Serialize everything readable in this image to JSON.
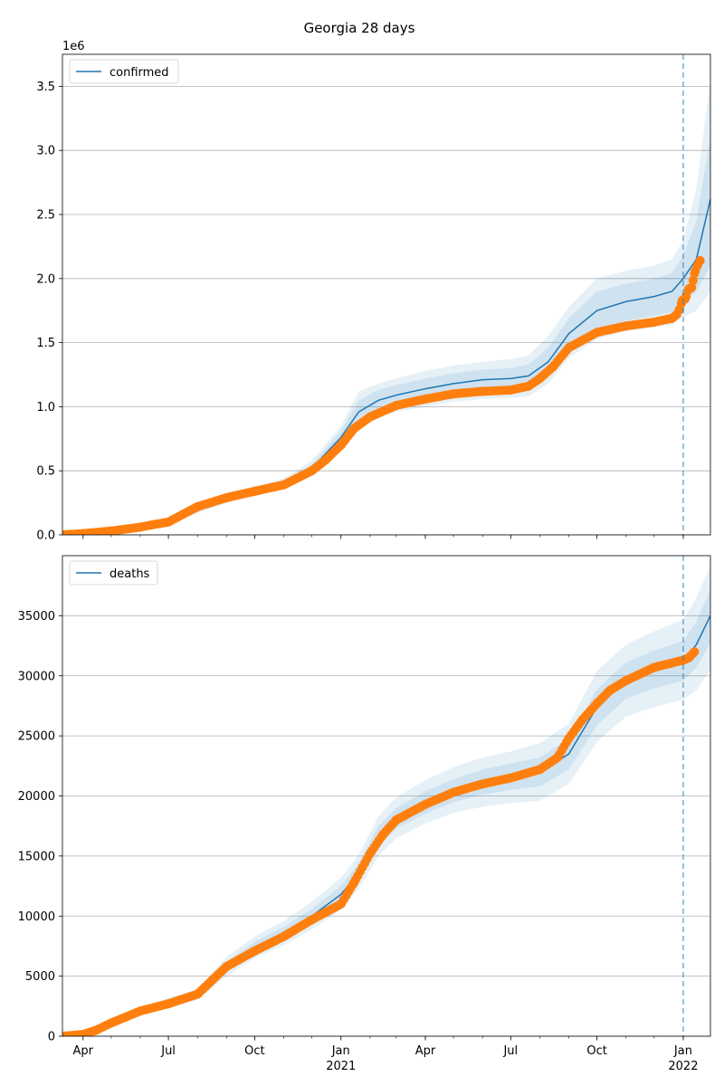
{
  "title": "Georgia 28 days",
  "colors": {
    "model_line": "#1f77b4",
    "band": "#1f77b4",
    "observed": "#ff7f0e",
    "grid": "#b0b0b0",
    "vline": "#1f77b4"
  },
  "chart_data": [
    {
      "type": "line",
      "panel": "top",
      "legend": [
        "confirmed"
      ],
      "legend_location": "upper left",
      "offset_label": "1e6",
      "grid": "y",
      "ylim": [
        0,
        3.75
      ],
      "yticks": [
        0.0,
        0.5,
        1.0,
        1.5,
        2.0,
        2.5,
        3.0,
        3.5
      ],
      "ytick_labels": [
        "0.0",
        "0.5",
        "1.0",
        "1.5",
        "2.0",
        "2.5",
        "3.0",
        "3.5"
      ],
      "xlim": [
        "2020-03-10",
        "2022-01-30"
      ],
      "forecast_start": "2022-01-01",
      "model": {
        "name": "confirmed",
        "x": [
          "2020-03-10",
          "2020-05-01",
          "2020-06-01",
          "2020-07-01",
          "2020-08-01",
          "2020-09-01",
          "2020-10-01",
          "2020-11-01",
          "2020-12-01",
          "2021-01-01",
          "2021-01-20",
          "2021-02-10",
          "2021-03-01",
          "2021-04-01",
          "2021-05-01",
          "2021-06-01",
          "2021-07-01",
          "2021-07-20",
          "2021-08-10",
          "2021-09-01",
          "2021-10-01",
          "2021-11-01",
          "2021-12-01",
          "2021-12-20",
          "2022-01-01",
          "2022-01-15",
          "2022-01-30"
        ],
        "median": [
          0.0,
          0.03,
          0.06,
          0.1,
          0.2,
          0.28,
          0.35,
          0.4,
          0.52,
          0.76,
          0.96,
          1.05,
          1.09,
          1.14,
          1.18,
          1.21,
          1.22,
          1.24,
          1.35,
          1.57,
          1.75,
          1.82,
          1.86,
          1.9,
          2.0,
          2.15,
          2.62
        ],
        "bands": [
          {
            "lower": [
              0.0,
              0.02,
              0.05,
              0.09,
              0.17,
              0.25,
              0.32,
              0.37,
              0.47,
              0.67,
              0.82,
              0.92,
              0.96,
              1.0,
              1.04,
              1.06,
              1.07,
              1.08,
              1.18,
              1.38,
              1.53,
              1.59,
              1.62,
              1.64,
              1.7,
              1.75,
              1.9
            ],
            "upper": [
              0.0,
              0.04,
              0.08,
              0.11,
              0.24,
              0.33,
              0.38,
              0.44,
              0.58,
              0.85,
              1.12,
              1.18,
              1.22,
              1.28,
              1.32,
              1.35,
              1.37,
              1.4,
              1.55,
              1.78,
              2.0,
              2.06,
              2.1,
              2.15,
              2.3,
              2.7,
              3.55
            ]
          },
          {
            "lower": [
              0.0,
              0.025,
              0.055,
              0.095,
              0.18,
              0.26,
              0.33,
              0.38,
              0.49,
              0.7,
              0.87,
              0.97,
              1.01,
              1.06,
              1.1,
              1.12,
              1.13,
              1.15,
              1.25,
              1.45,
              1.61,
              1.67,
              1.71,
              1.74,
              1.8,
              1.9,
              2.1
            ],
            "upper": [
              0.0,
              0.035,
              0.07,
              0.105,
              0.22,
              0.31,
              0.37,
              0.42,
              0.55,
              0.81,
              1.05,
              1.13,
              1.17,
              1.22,
              1.26,
              1.29,
              1.3,
              1.33,
              1.46,
              1.69,
              1.9,
              1.96,
              2.0,
              2.04,
              2.18,
              2.45,
              3.1
            ]
          }
        ]
      },
      "observed": {
        "x": [
          "2020-03-10",
          "2020-04-01",
          "2020-05-01",
          "2020-06-01",
          "2020-06-15",
          "2020-07-01",
          "2020-08-01",
          "2020-09-01",
          "2020-10-01",
          "2020-11-01",
          "2020-12-01",
          "2020-12-15",
          "2021-01-01",
          "2021-01-15",
          "2021-02-01",
          "2021-03-01",
          "2021-04-01",
          "2021-05-01",
          "2021-06-01",
          "2021-07-01",
          "2021-07-20",
          "2021-08-01",
          "2021-08-15",
          "2021-09-01",
          "2021-10-01",
          "2021-11-01",
          "2021-12-01",
          "2021-12-20",
          "2021-12-25",
          "2021-12-28",
          "2021-12-31",
          "2022-01-03",
          "2022-01-07",
          "2022-01-10",
          "2022-01-13",
          "2022-01-16",
          "2022-01-19"
        ],
        "values": [
          0.0,
          0.01,
          0.03,
          0.06,
          0.08,
          0.1,
          0.22,
          0.29,
          0.34,
          0.39,
          0.5,
          0.58,
          0.7,
          0.83,
          0.92,
          1.01,
          1.06,
          1.1,
          1.12,
          1.13,
          1.16,
          1.22,
          1.31,
          1.46,
          1.58,
          1.63,
          1.66,
          1.69,
          1.72,
          1.76,
          1.83,
          1.84,
          1.92,
          1.93,
          2.04,
          2.1,
          2.14
        ]
      }
    },
    {
      "type": "line",
      "panel": "bottom",
      "legend": [
        "deaths"
      ],
      "legend_location": "upper left",
      "grid": "y",
      "ylim": [
        0,
        40000
      ],
      "yticks": [
        0,
        5000,
        10000,
        15000,
        20000,
        25000,
        30000,
        35000
      ],
      "ytick_labels": [
        "0",
        "5000",
        "10000",
        "15000",
        "20000",
        "25000",
        "30000",
        "35000"
      ],
      "xlim": [
        "2020-03-10",
        "2022-01-30"
      ],
      "xticks": [
        "2020-04-01",
        "2020-07-01",
        "2020-10-01",
        "2021-01-01",
        "2021-04-01",
        "2021-07-01",
        "2021-10-01",
        "2022-01-01"
      ],
      "xtick_labels": [
        "Apr",
        "Jul",
        "Oct",
        "Jan",
        "Apr",
        "Jul",
        "Oct",
        "Jan"
      ],
      "xtick_year_labels": [
        "",
        "",
        "",
        "2021",
        "",
        "",
        "",
        "2022"
      ],
      "forecast_start": "2022-01-01",
      "model": {
        "name": "deaths",
        "x": [
          "2020-03-10",
          "2020-04-01",
          "2020-05-01",
          "2020-06-01",
          "2020-07-01",
          "2020-08-01",
          "2020-09-01",
          "2020-10-01",
          "2020-11-01",
          "2020-12-01",
          "2021-01-01",
          "2021-01-20",
          "2021-02-10",
          "2021-03-01",
          "2021-04-01",
          "2021-05-01",
          "2021-06-01",
          "2021-07-01",
          "2021-08-01",
          "2021-09-01",
          "2021-10-01",
          "2021-11-01",
          "2021-12-01",
          "2022-01-01",
          "2022-01-15",
          "2022-01-30"
        ],
        "median": [
          0,
          200,
          1200,
          2100,
          2800,
          3400,
          5800,
          7400,
          8600,
          10000,
          11800,
          13600,
          16600,
          18100,
          19400,
          20400,
          21200,
          21600,
          22000,
          23500,
          27400,
          29600,
          30500,
          31200,
          32600,
          35000
        ],
        "bands": [
          {
            "lower": [
              0,
              150,
              1000,
              1800,
              2500,
              3000,
              5000,
              6500,
              7600,
              8900,
              10500,
              12300,
              15000,
              16500,
              17700,
              18600,
              19100,
              19400,
              19600,
              21000,
              24500,
              26600,
              27400,
              28000,
              28800,
              30500
            ],
            "upper": [
              0,
              250,
              1400,
              2400,
              3200,
              3900,
              6600,
              8300,
              9600,
              11200,
              13200,
              15100,
              18300,
              19900,
              21300,
              22400,
              23200,
              23700,
              24400,
              26000,
              30400,
              32600,
              33700,
              34700,
              36500,
              39200
            ]
          },
          {
            "lower": [
              0,
              170,
              1100,
              1950,
              2650,
              3200,
              5400,
              6950,
              8100,
              9450,
              11100,
              12900,
              15800,
              17300,
              18500,
              19500,
              20100,
              20500,
              20800,
              22200,
              25900,
              28100,
              28950,
              29600,
              30700,
              32700
            ],
            "upper": [
              0,
              230,
              1300,
              2250,
              2950,
              3650,
              6200,
              7850,
              9100,
              10600,
              12500,
              14400,
              17500,
              19000,
              20400,
              21400,
              22200,
              22700,
              23200,
              24800,
              28900,
              31100,
              32100,
              32900,
              34500,
              37200
            ]
          }
        ]
      },
      "observed": {
        "x": [
          "2020-03-10",
          "2020-04-01",
          "2020-04-15",
          "2020-05-01",
          "2020-06-01",
          "2020-07-01",
          "2020-08-01",
          "2020-09-01",
          "2020-10-01",
          "2020-11-01",
          "2020-12-01",
          "2021-01-01",
          "2021-01-15",
          "2021-02-01",
          "2021-02-15",
          "2021-03-01",
          "2021-04-01",
          "2021-05-01",
          "2021-06-01",
          "2021-07-01",
          "2021-08-01",
          "2021-08-20",
          "2021-09-01",
          "2021-09-15",
          "2021-10-01",
          "2021-10-15",
          "2021-11-01",
          "2021-12-01",
          "2022-01-01",
          "2022-01-07",
          "2022-01-13"
        ],
        "values": [
          0,
          150,
          500,
          1100,
          2100,
          2700,
          3500,
          5800,
          7100,
          8300,
          9700,
          11000,
          12800,
          15200,
          16800,
          18000,
          19300,
          20300,
          21000,
          21500,
          22200,
          23200,
          24800,
          26300,
          27700,
          28800,
          29600,
          30700,
          31300,
          31500,
          32000
        ]
      }
    }
  ]
}
